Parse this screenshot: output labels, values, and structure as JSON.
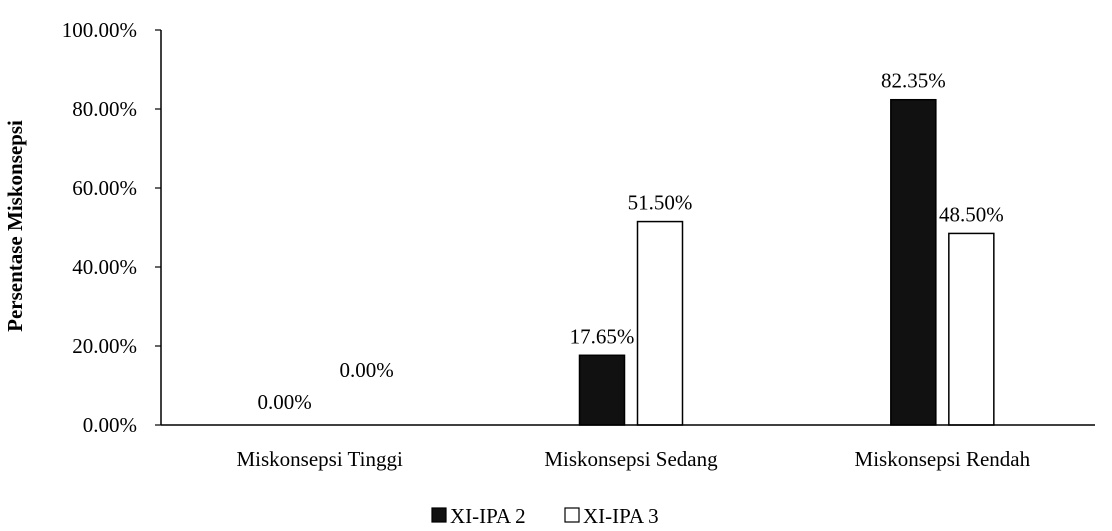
{
  "chart_data": {
    "type": "bar",
    "categories": [
      "Miskonsepsi Tinggi",
      "Miskonsepsi Sedang",
      "Miskonsepsi Rendah"
    ],
    "series": [
      {
        "name": "XI-IPA 2",
        "values": [
          0,
          17.65,
          82.35
        ],
        "labels": [
          "0.00%",
          "17.65%",
          "82.35%"
        ],
        "color": "#111111"
      },
      {
        "name": "XI-IPA 3",
        "values": [
          0,
          51.5,
          48.5
        ],
        "labels": [
          "0.00%",
          "51.50%",
          "48.50%"
        ],
        "color": "#ffffff"
      }
    ],
    "ylabel": "Persentase Miskonsepsi",
    "ylim": [
      0,
      100
    ],
    "yticks": [
      0,
      20,
      40,
      60,
      80,
      100
    ],
    "ytick_labels": [
      "0.00%",
      "20.00%",
      "40.00%",
      "60.00%",
      "80.00%",
      "100.00%"
    ],
    "grid": false,
    "legend_position": "bottom"
  }
}
